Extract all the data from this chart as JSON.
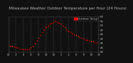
{
  "title": "Milwaukee Weather Outdoor Temperature per Hour (24 Hours)",
  "background_color": "#111111",
  "plot_bg_color": "#111111",
  "dot_color": "#ff0000",
  "grid_color": "#555555",
  "text_color": "#bbbbbb",
  "hours": [
    0,
    0.5,
    1,
    1.5,
    2,
    2.5,
    3,
    3.5,
    4,
    4.5,
    5,
    5.5,
    6,
    6.5,
    7,
    7.5,
    8,
    8.5,
    9,
    9.5,
    10,
    10.5,
    11,
    11.5,
    12,
    12.5,
    13,
    13.5,
    14,
    14.5,
    15,
    15.5,
    16,
    16.5,
    17,
    17.5,
    18,
    18.5,
    19,
    19.5,
    20,
    20.5,
    21,
    21.5,
    22,
    22.5,
    23,
    23.5
  ],
  "temps": [
    28,
    27,
    27,
    26,
    25,
    25,
    24,
    24,
    23,
    23,
    23,
    24,
    25,
    27,
    30,
    33,
    36,
    39,
    42,
    45,
    48,
    50,
    52,
    53,
    54,
    55,
    54,
    53,
    52,
    50,
    48,
    46,
    44,
    43,
    41,
    40,
    39,
    38,
    37,
    36,
    35,
    34,
    34,
    33,
    32,
    32,
    31,
    31
  ],
  "ylim": [
    20,
    60
  ],
  "xlim": [
    0,
    24
  ],
  "yticks": [
    20,
    25,
    30,
    35,
    40,
    45,
    50,
    55,
    60
  ],
  "xtick_positions": [
    0,
    2,
    4,
    6,
    8,
    10,
    12,
    14,
    16,
    18,
    20,
    22,
    24
  ],
  "xtick_labels": [
    "12",
    "2",
    "4",
    "6",
    "8",
    "10",
    "12",
    "2",
    "4",
    "6",
    "8",
    "10",
    "12"
  ],
  "vgrid_positions": [
    0,
    2,
    4,
    6,
    8,
    10,
    12,
    14,
    16,
    18,
    20,
    22,
    24
  ],
  "legend_label": "Outdoor Temp",
  "legend_color": "#ff0000",
  "title_fontsize": 4.0,
  "tick_fontsize": 3.0,
  "dot_size": 1.2
}
